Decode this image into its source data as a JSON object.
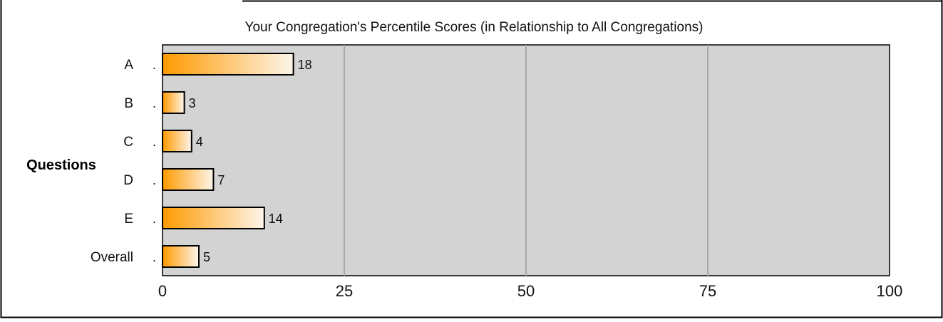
{
  "chart_data": {
    "type": "bar",
    "orientation": "horizontal",
    "title": "Your Congregation's Percentile Scores (in Relationship to All Congregations)",
    "ylabel": "Questions",
    "xlabel": "",
    "categories": [
      "A",
      "B",
      "C",
      "D",
      "E",
      "Overall"
    ],
    "values": [
      18,
      3,
      4,
      7,
      14,
      5
    ],
    "xlim": [
      0,
      100
    ],
    "xticks": [
      0,
      25,
      50,
      75,
      100
    ],
    "grid": true,
    "plot_background": "#d3d3d3",
    "grid_color": "#a8a8a8",
    "bar_gradient": [
      "#ff9a00",
      "#fdf5ea"
    ],
    "bar_border": "#000000"
  }
}
